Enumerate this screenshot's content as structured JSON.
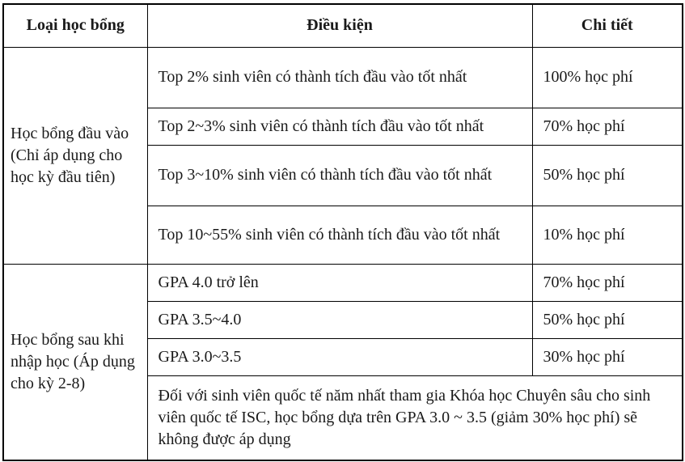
{
  "table": {
    "headers": [
      "Loại học bổng",
      "Điều kiện",
      "Chi tiết"
    ],
    "sections": [
      {
        "label": "Học bổng đầu vào (Chỉ áp dụng cho học kỳ đầu tiên)",
        "rows": [
          {
            "condition": "Top 2% sinh viên có thành tích đầu vào tốt nhất",
            "detail": "100% học phí"
          },
          {
            "condition": "Top 2~3% sinh viên có thành tích đầu vào tốt nhất",
            "detail": "70% học phí"
          },
          {
            "condition": "Top 3~10% sinh viên có thành tích đầu vào tốt nhất",
            "detail": "50% học phí"
          },
          {
            "condition": "Top 10~55% sinh viên có thành tích đầu vào tốt nhất",
            "detail": "10% học phí"
          }
        ]
      },
      {
        "label": "Học bổng sau khi nhập học (Áp dụng cho kỳ 2-8)",
        "rows": [
          {
            "condition": "GPA 4.0 trở lên",
            "detail": "70% học phí"
          },
          {
            "condition": "GPA 3.5~4.0",
            "detail": "50% học phí"
          },
          {
            "condition": "GPA 3.0~3.5",
            "detail": "30% học phí"
          }
        ],
        "note": "Đối với sinh viên quốc tế năm nhất tham gia Khóa học Chuyên sâu cho sinh viên quốc tế ISC, học bổng dựa trên GPA 3.0 ~ 3.5 (giảm 30% học phí) sẽ không được áp dụng"
      }
    ],
    "colors": {
      "border": "#000000",
      "text": "#1a1a1a",
      "background": "#ffffff"
    }
  }
}
